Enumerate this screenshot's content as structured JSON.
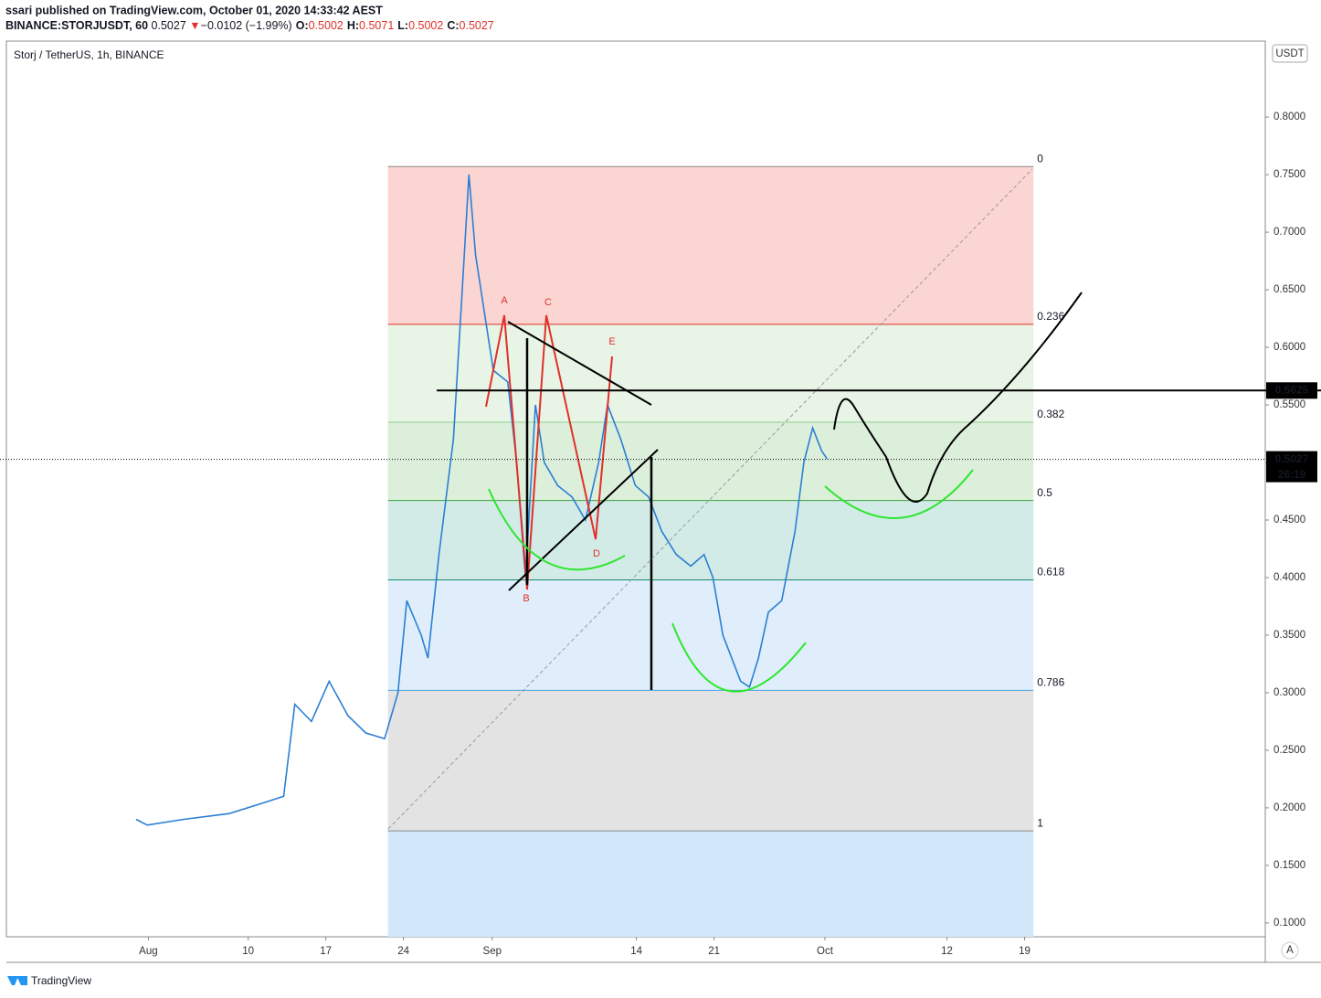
{
  "header": {
    "published": "ssari published on TradingView.com, October 01, 2020 14:33:42 AEST",
    "symbol": "BINANCE:STORJUSDT, 60",
    "last": "0.5027",
    "arrow": "▼",
    "change": "−0.0102 (−1.99%)",
    "stats": [
      {
        "label": "O:",
        "value": "0.5002"
      },
      {
        "label": "H:",
        "value": "0.5071"
      },
      {
        "label": "L:",
        "value": "0.5002"
      },
      {
        "label": "C:",
        "value": "0.5027"
      }
    ]
  },
  "chart_data": {
    "type": "line",
    "title": "Storj / TetherUS, 1h, BINANCE",
    "currency": "USDT",
    "scale_button": "A",
    "x": [
      -1.1,
      -0.1,
      3.2,
      7.3,
      10.6,
      12.2,
      13.2,
      14.7,
      16.3,
      18,
      19.6,
      21.3,
      22.5,
      23.3,
      24.6,
      25.2,
      26.2,
      27.5,
      28.3,
      28.9,
      29.5,
      30.3,
      31.1,
      32.4,
      33.2,
      34,
      34.9,
      35.7,
      36.9,
      38.2,
      39.4,
      40.6,
      41.4,
      42.6,
      43.9,
      45.1,
      46.3,
      47.6,
      48.9,
      50.1,
      50.9,
      51.8,
      52.6,
      53.4,
      54.2,
      55,
      55.9,
      57.1,
      58.3,
      59.1,
      59.9,
      60.7,
      61.2
    ],
    "series": [
      {
        "name": "STORJUSDT",
        "color": "#2a7fd4",
        "values": [
          0.19,
          0.185,
          0.19,
          0.195,
          0.205,
          0.21,
          0.29,
          0.275,
          0.31,
          0.28,
          0.265,
          0.26,
          0.3,
          0.38,
          0.35,
          0.33,
          0.42,
          0.52,
          0.65,
          0.75,
          0.68,
          0.63,
          0.58,
          0.57,
          0.5,
          0.4,
          0.55,
          0.5,
          0.48,
          0.47,
          0.45,
          0.5,
          0.55,
          0.52,
          0.48,
          0.47,
          0.44,
          0.42,
          0.41,
          0.42,
          0.4,
          0.35,
          0.33,
          0.31,
          0.305,
          0.33,
          0.37,
          0.38,
          0.44,
          0.5,
          0.53,
          0.51,
          0.503
        ]
      }
    ],
    "xlim": [
      -12.8,
      100.7
    ],
    "xticks": [
      {
        "value": 0,
        "label": "Aug"
      },
      {
        "value": 9,
        "label": "10"
      },
      {
        "value": 16,
        "label": "17"
      },
      {
        "value": 23,
        "label": "24"
      },
      {
        "value": 31,
        "label": "Sep"
      },
      {
        "value": 44,
        "label": "14"
      },
      {
        "value": 51,
        "label": "21"
      },
      {
        "value": 61,
        "label": "Oct"
      },
      {
        "value": 72,
        "label": "12"
      },
      {
        "value": 79,
        "label": "19"
      }
    ],
    "ylim": [
      0.088,
      0.866
    ],
    "yticks": [
      {
        "value": 0.1,
        "label": "0.1000"
      },
      {
        "value": 0.15,
        "label": "0.1500"
      },
      {
        "value": 0.2,
        "label": "0.2000"
      },
      {
        "value": 0.25,
        "label": "0.2500"
      },
      {
        "value": 0.3,
        "label": "0.3000"
      },
      {
        "value": 0.35,
        "label": "0.3500"
      },
      {
        "value": 0.4,
        "label": "0.4000"
      },
      {
        "value": 0.45,
        "label": "0.4500"
      },
      {
        "value": 0.5,
        "label": "0.5000"
      },
      {
        "value": 0.55,
        "label": "0.5500"
      },
      {
        "value": 0.6,
        "label": "0.6000"
      },
      {
        "value": 0.65,
        "label": "0.6500"
      },
      {
        "value": 0.7,
        "label": "0.7000"
      },
      {
        "value": 0.75,
        "label": "0.7500"
      },
      {
        "value": 0.8,
        "label": "0.8000"
      }
    ],
    "fib": {
      "x": [
        21.6,
        79.8
      ],
      "levels": [
        {
          "label": "0",
          "value": 0.757,
          "color": "#888888",
          "band": "#fbd5d2"
        },
        {
          "label": "0.236",
          "value": 0.62,
          "color": "#e0302a",
          "band": "#e8f4e6"
        },
        {
          "label": "0.382",
          "value": 0.535,
          "color": "#8fd18c",
          "band": "#dcefdb"
        },
        {
          "label": "0.5",
          "value": 0.467,
          "color": "#3da23d",
          "band": "#d2ebe6"
        },
        {
          "label": "0.618",
          "value": 0.398,
          "color": "#138a74",
          "band": "#dfeefa"
        },
        {
          "label": "0.786",
          "value": 0.302,
          "color": "#4aa3df",
          "band": "#e3e3e4"
        },
        {
          "label": "1",
          "value": 0.18,
          "color": "#888888",
          "band": "#d3e7fa"
        }
      ]
    },
    "price_line": {
      "value": 0.5625,
      "label": "0.5625"
    },
    "last_price": {
      "value": 0.5027,
      "label": "0.5027",
      "countdown": "26:19"
    },
    "annotations": [
      "A",
      "B",
      "C",
      "D",
      "E"
    ]
  },
  "footer": {
    "brand": "TradingView"
  }
}
